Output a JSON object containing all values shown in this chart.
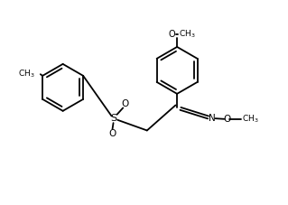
{
  "bg_color": "#ffffff",
  "line_color": "#000000",
  "line_width": 1.3,
  "fig_width": 3.19,
  "fig_height": 2.27,
  "dpi": 100,
  "xlim": [
    0,
    9.5
  ],
  "ylim": [
    0,
    6.7
  ]
}
